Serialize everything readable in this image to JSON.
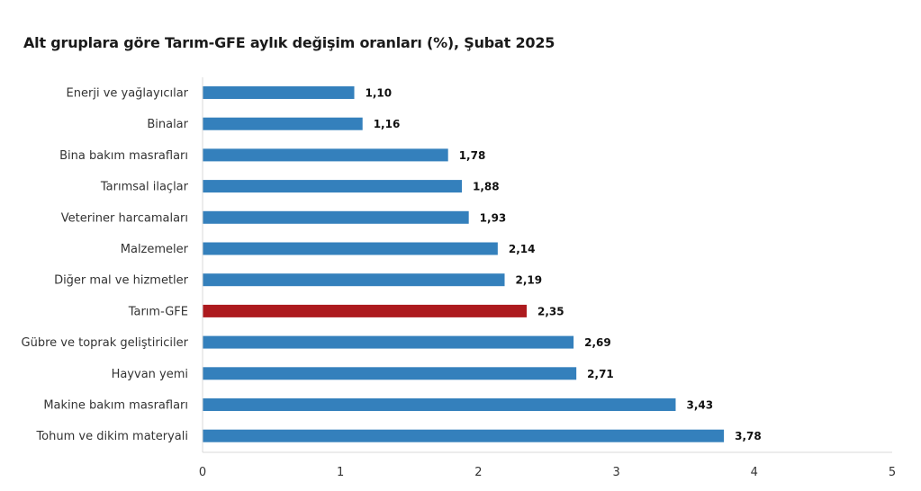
{
  "chart_data": {
    "type": "bar",
    "orientation": "horizontal",
    "title": "Alt gruplara göre Tarım-GFE aylık değişim oranları (%), Şubat 2025",
    "categories": [
      "Enerji  ve yağlayıcılar",
      "Binalar",
      "Bina bakım masrafları",
      "Tarımsal ilaçlar",
      "Veteriner harcamaları",
      "Malzemeler",
      "Diğer mal ve hizmetler",
      "Tarım-GFE",
      "Gübre ve toprak geliştiriciler",
      "Hayvan yemi",
      "Makine bakım masrafları",
      "Tohum ve dikim materyali"
    ],
    "values": [
      1.1,
      1.16,
      1.78,
      1.88,
      1.93,
      2.14,
      2.19,
      2.35,
      2.69,
      2.71,
      3.43,
      3.78
    ],
    "value_labels": [
      "1,10",
      "1,16",
      "1,78",
      "1,88",
      "1,93",
      "2,14",
      "2,19",
      "2,35",
      "2,69",
      "2,71",
      "3,43",
      "3,78"
    ],
    "xlim": [
      0,
      5
    ],
    "x_ticks": [
      0,
      1,
      2,
      3,
      4,
      5
    ],
    "x_tick_labels": [
      "0",
      "1",
      "2",
      "3",
      "4",
      "5"
    ],
    "highlight_category": "Tarım-GFE",
    "colors": {
      "bar": "#3480bc",
      "highlight": "#ad1a1e",
      "axis": "#d9d9d9"
    },
    "grid": false,
    "legend": "none"
  }
}
